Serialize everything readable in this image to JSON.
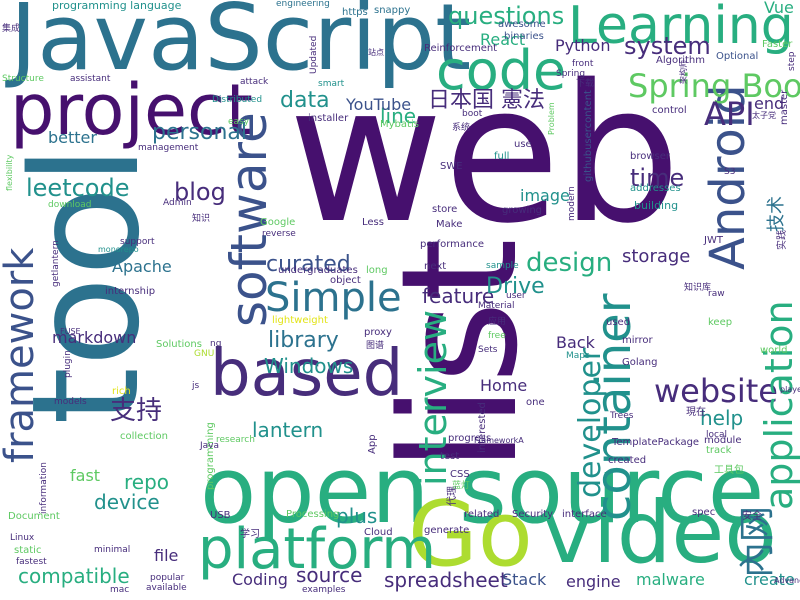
{
  "palette": {
    "dark_purple": "#46106e",
    "purple": "#472d7b",
    "indigo": "#3b528b",
    "blue": "#2c728e",
    "teal": "#21918c",
    "green_teal": "#28ae80",
    "green": "#5ec962",
    "lime": "#addc30",
    "yellow": "#e2e418"
  },
  "words": [
    {
      "text": "web",
      "color": "dark_purple",
      "rot": 0
    },
    {
      "text": "list",
      "color": "dark_purple",
      "rot": 90
    },
    {
      "text": "tool",
      "color": "blue",
      "rot": 90
    },
    {
      "text": "open source",
      "color": "green_teal",
      "rot": 0
    },
    {
      "text": "JavaScript",
      "color": "blue",
      "rot": 0
    },
    {
      "text": "Go",
      "color": "lime",
      "rot": 0
    },
    {
      "text": "video",
      "color": "green_teal",
      "rot": 0
    },
    {
      "text": "project",
      "color": "dark_purple",
      "rot": 0
    },
    {
      "text": "based",
      "color": "purple",
      "rot": 0
    },
    {
      "text": "platform",
      "color": "green_teal",
      "rot": 0
    },
    {
      "text": "code",
      "color": "green_teal",
      "rot": 0
    },
    {
      "text": "Learning",
      "color": "green_teal",
      "rot": 0
    },
    {
      "text": "software",
      "color": "indigo",
      "rot": 90
    },
    {
      "text": "framework",
      "color": "indigo",
      "rot": 90
    },
    {
      "text": "Android",
      "color": "indigo",
      "rot": 90
    },
    {
      "text": "Simple",
      "color": "blue",
      "rot": 0
    },
    {
      "text": "Spring Boot",
      "color": "green",
      "rot": 0
    },
    {
      "text": "website",
      "color": "purple",
      "rot": 0
    },
    {
      "text": "questions",
      "color": "green_teal",
      "rot": 0
    },
    {
      "text": "system",
      "color": "purple",
      "rot": 0
    },
    {
      "text": "API",
      "color": "purple",
      "rot": 0
    },
    {
      "text": "data",
      "color": "teal",
      "rot": 0
    },
    {
      "text": "line",
      "color": "green_teal",
      "rot": 0
    },
    {
      "text": "日本国 憲法",
      "color": "purple",
      "rot": 0
    },
    {
      "text": "YouTube",
      "color": "indigo",
      "rot": 0
    },
    {
      "text": "personal",
      "color": "blue",
      "rot": 0
    },
    {
      "text": "better",
      "color": "blue",
      "rot": 0
    },
    {
      "text": "leetcode",
      "color": "teal",
      "rot": 0
    },
    {
      "text": "blog",
      "color": "purple",
      "rot": 0
    },
    {
      "text": "time",
      "color": "purple",
      "rot": 0
    },
    {
      "text": "image",
      "color": "teal",
      "rot": 0
    },
    {
      "text": "design",
      "color": "green_teal",
      "rot": 0
    },
    {
      "text": "curated",
      "color": "indigo",
      "rot": 0
    },
    {
      "text": "storage",
      "color": "purple",
      "rot": 0
    },
    {
      "text": "Apache",
      "color": "blue",
      "rot": 0
    },
    {
      "text": "feature",
      "color": "purple",
      "rot": 0
    },
    {
      "text": "Drive",
      "color": "teal",
      "rot": 0
    },
    {
      "text": "library",
      "color": "blue",
      "rot": 0
    },
    {
      "text": "Windows",
      "color": "teal",
      "rot": 0
    },
    {
      "text": "markdown",
      "color": "purple",
      "rot": 0
    },
    {
      "text": "container",
      "color": "teal",
      "rot": 90
    },
    {
      "text": "application",
      "color": "green_teal",
      "rot": 90
    },
    {
      "text": "interview",
      "color": "green_teal",
      "rot": 90
    },
    {
      "text": "developer",
      "color": "teal",
      "rot": 90
    },
    {
      "text": "支持",
      "color": "purple",
      "rot": 0
    },
    {
      "text": "lantern",
      "color": "teal",
      "rot": 0
    },
    {
      "text": "help",
      "color": "teal",
      "rot": 0
    },
    {
      "text": "repo",
      "color": "green_teal",
      "rot": 0
    },
    {
      "text": "device",
      "color": "teal",
      "rot": 0
    },
    {
      "text": "fast",
      "color": "green",
      "rot": 0
    },
    {
      "text": "plus",
      "color": "teal",
      "rot": 0
    },
    {
      "text": "compatible",
      "color": "green_teal",
      "rot": 0
    },
    {
      "text": "file",
      "color": "purple",
      "rot": 0
    },
    {
      "text": "source",
      "color": "purple",
      "rot": 0
    },
    {
      "text": "spreadsheet",
      "color": "purple",
      "rot": 0
    },
    {
      "text": "Stack",
      "color": "indigo",
      "rot": 0
    },
    {
      "text": "engine",
      "color": "purple",
      "rot": 0
    },
    {
      "text": "malware",
      "color": "green_teal",
      "rot": 0
    },
    {
      "text": "create",
      "color": "teal",
      "rot": 0
    },
    {
      "text": "Coding",
      "color": "purple",
      "rot": 0
    },
    {
      "text": "Home",
      "color": "purple",
      "rot": 0
    },
    {
      "text": "Back",
      "color": "purple",
      "rot": 0
    },
    {
      "text": "end",
      "color": "purple",
      "rot": 0
    },
    {
      "text": "內网",
      "color": "blue",
      "rot": 90
    },
    {
      "text": "技术",
      "color": "blue",
      "rot": 90
    },
    {
      "text": "Python",
      "color": "purple",
      "rot": 0
    },
    {
      "text": "React",
      "color": "green_teal",
      "rot": 0
    },
    {
      "text": "Vue",
      "color": "green_teal",
      "rot": 0
    },
    {
      "text": "programming language",
      "color": "teal",
      "rot": 0
    },
    {
      "text": "engineering",
      "color": "blue",
      "rot": 0
    },
    {
      "text": "https",
      "color": "blue",
      "rot": 0
    },
    {
      "text": "snappy",
      "color": "blue",
      "rot": 0
    },
    {
      "text": "awesome",
      "color": "indigo",
      "rot": 0
    },
    {
      "text": "binaries",
      "color": "indigo",
      "rot": 0
    },
    {
      "text": "Reinforcement",
      "color": "purple",
      "rot": 0
    },
    {
      "text": "Algorithm",
      "color": "purple",
      "rot": 0
    },
    {
      "text": "Optional",
      "color": "indigo",
      "rot": 0
    },
    {
      "text": "Faster",
      "color": "green",
      "rot": 0
    },
    {
      "text": "front",
      "color": "purple",
      "rot": 0
    },
    {
      "text": "下载",
      "color": "purple",
      "rot": 0
    },
    {
      "text": "control",
      "color": "purple",
      "rot": 0
    },
    {
      "text": "boot",
      "color": "purple",
      "rot": 0
    },
    {
      "text": "installer",
      "color": "purple",
      "rot": 0
    },
    {
      "text": "smart",
      "color": "teal",
      "rot": 0
    },
    {
      "text": "Mybatis",
      "color": "green",
      "rot": 0
    },
    {
      "text": "系统",
      "color": "purple",
      "rot": 0
    },
    {
      "text": "githubusercontent",
      "color": "indigo",
      "rot": 90
    },
    {
      "text": "use",
      "color": "purple",
      "rot": 0
    },
    {
      "text": "full",
      "color": "teal",
      "rot": 0
    },
    {
      "text": "SWE",
      "color": "purple",
      "rot": 0
    },
    {
      "text": "browser",
      "color": "purple",
      "rot": 0
    },
    {
      "text": "addresses",
      "color": "teal",
      "rot": 0
    },
    {
      "text": "building",
      "color": "teal",
      "rot": 0
    },
    {
      "text": "store",
      "color": "purple",
      "rot": 0
    },
    {
      "text": "Make",
      "color": "purple",
      "rot": 0
    },
    {
      "text": "growing",
      "color": "purple",
      "rot": 0
    },
    {
      "text": "Less",
      "color": "purple",
      "rot": 0
    },
    {
      "text": "Google",
      "color": "green",
      "rot": 0
    },
    {
      "text": "reverse",
      "color": "purple",
      "rot": 0
    },
    {
      "text": "performance",
      "color": "purple",
      "rot": 0
    },
    {
      "text": "undergraduates",
      "color": "purple",
      "rot": 0
    },
    {
      "text": "object",
      "color": "purple",
      "rot": 0
    },
    {
      "text": "long",
      "color": "green",
      "rot": 0
    },
    {
      "text": "next",
      "color": "purple",
      "rot": 0
    },
    {
      "text": "sample",
      "color": "teal",
      "rot": 0
    },
    {
      "text": "JWT",
      "color": "purple",
      "rot": 0
    },
    {
      "text": "S3",
      "color": "purple",
      "rot": 0
    },
    {
      "text": "master",
      "color": "purple",
      "rot": 90
    },
    {
      "text": "实践",
      "color": "purple",
      "rot": 90
    },
    {
      "text": "raw",
      "color": "purple",
      "rot": 0
    },
    {
      "text": "知识库",
      "color": "purple",
      "rot": 0
    },
    {
      "text": "keep",
      "color": "green",
      "rot": 0
    },
    {
      "text": "world",
      "color": "green",
      "rot": 0
    },
    {
      "text": "Material",
      "color": "purple",
      "rot": 0
    },
    {
      "text": "user",
      "color": "purple",
      "rot": 0
    },
    {
      "text": "used",
      "color": "purple",
      "rot": 0
    },
    {
      "text": "应用",
      "color": "purple",
      "rot": 0
    },
    {
      "text": "free",
      "color": "green",
      "rot": 0
    },
    {
      "text": "proxy",
      "color": "purple",
      "rot": 0
    },
    {
      "text": "图谱",
      "color": "purple",
      "rot": 0
    },
    {
      "text": "Sets",
      "color": "purple",
      "rot": 0
    },
    {
      "text": "Maps",
      "color": "teal",
      "rot": 0
    },
    {
      "text": "mirror",
      "color": "purple",
      "rot": 0
    },
    {
      "text": "Golang",
      "color": "purple",
      "rot": 0
    },
    {
      "text": "lightweight",
      "color": "yellow",
      "rot": 0
    },
    {
      "text": "Solutions",
      "color": "green",
      "rot": 0
    },
    {
      "text": "GNU",
      "color": "lime",
      "rot": 0
    },
    {
      "text": "ng",
      "color": "purple",
      "rot": 0
    },
    {
      "text": "plugin",
      "color": "purple",
      "rot": 90
    },
    {
      "text": "internship",
      "color": "purple",
      "rot": 0
    },
    {
      "text": "monorepo",
      "color": "teal",
      "rot": 0
    },
    {
      "text": "support",
      "color": "purple",
      "rot": 0
    },
    {
      "text": "getlantern",
      "color": "purple",
      "rot": 90
    },
    {
      "text": "FUSE",
      "color": "purple",
      "rot": 0
    },
    {
      "text": "知识",
      "color": "purple",
      "rot": 0
    },
    {
      "text": "Admin",
      "color": "purple",
      "rot": 0
    },
    {
      "text": "download",
      "color": "green",
      "rot": 0
    },
    {
      "text": "flexibility",
      "color": "green",
      "rot": 90
    },
    {
      "text": "management",
      "color": "purple",
      "rot": 0
    },
    {
      "text": "easy",
      "color": "green",
      "rot": 0
    },
    {
      "text": "Distributed",
      "color": "teal",
      "rot": 0
    },
    {
      "text": "attack",
      "color": "purple",
      "rot": 0
    },
    {
      "text": "Updated",
      "color": "purple",
      "rot": 90
    },
    {
      "text": "Structure",
      "color": "green",
      "rot": 0
    },
    {
      "text": "assistant",
      "color": "purple",
      "rot": 0
    },
    {
      "text": "集成",
      "color": "purple",
      "rot": 0
    },
    {
      "text": "站点",
      "color": "purple",
      "rot": 0
    },
    {
      "text": "modern",
      "color": "purple",
      "rot": 90
    },
    {
      "text": "架构师",
      "color": "purple",
      "rot": 90
    },
    {
      "text": "太子党",
      "color": "purple",
      "rot": 0
    },
    {
      "text": "step",
      "color": "purple",
      "rot": 90
    },
    {
      "text": "Spring",
      "color": "purple",
      "rot": 0
    },
    {
      "text": "Problem",
      "color": "green",
      "rot": 90
    },
    {
      "text": "rich",
      "color": "yellow",
      "rot": 0
    },
    {
      "text": "collection",
      "color": "green",
      "rot": 0
    },
    {
      "text": "models",
      "color": "purple",
      "rot": 0
    },
    {
      "text": "information",
      "color": "purple",
      "rot": 90
    },
    {
      "text": "programming",
      "color": "green",
      "rot": 90
    },
    {
      "text": "research",
      "color": "green",
      "rot": 0
    },
    {
      "text": "Java",
      "color": "purple",
      "rot": 0
    },
    {
      "text": "js",
      "color": "purple",
      "rot": 0
    },
    {
      "text": "App",
      "color": "purple",
      "rot": 90
    },
    {
      "text": "progress",
      "color": "purple",
      "rot": 0
    },
    {
      "text": "FrameworkA",
      "color": "purple",
      "rot": 0
    },
    {
      "text": "TemplatePackage",
      "color": "purple",
      "rot": 0
    },
    {
      "text": "module",
      "color": "purple",
      "rot": 0
    },
    {
      "text": "local",
      "color": "purple",
      "rot": 0
    },
    {
      "text": "現在",
      "color": "purple",
      "rot": 0
    },
    {
      "text": "track",
      "color": "green",
      "rot": 0
    },
    {
      "text": "test",
      "color": "purple",
      "rot": 0
    },
    {
      "text": "created",
      "color": "purple",
      "rot": 0
    },
    {
      "text": "CSS",
      "color": "purple",
      "rot": 0
    },
    {
      "text": "蓝灯",
      "color": "green",
      "rot": 0
    },
    {
      "text": "工具包",
      "color": "green",
      "rot": 0
    },
    {
      "text": "代理",
      "color": "purple",
      "rot": 90
    },
    {
      "text": "Trees",
      "color": "purple",
      "rot": 0
    },
    {
      "text": "interested",
      "color": "purple",
      "rot": 90
    },
    {
      "text": "one",
      "color": "purple",
      "rot": 0
    },
    {
      "text": "USB",
      "color": "purple",
      "rot": 0
    },
    {
      "text": "Processing",
      "color": "green",
      "rot": 0
    },
    {
      "text": "generate",
      "color": "purple",
      "rot": 0
    },
    {
      "text": "related",
      "color": "purple",
      "rot": 0
    },
    {
      "text": "Security",
      "color": "purple",
      "rot": 0
    },
    {
      "text": "interface",
      "color": "purple",
      "rot": 0
    },
    {
      "text": "spec",
      "color": "purple",
      "rot": 0
    },
    {
      "text": "安全",
      "color": "purple",
      "rot": 0
    },
    {
      "text": "Document",
      "color": "green",
      "rot": 0
    },
    {
      "text": "Linux",
      "color": "purple",
      "rot": 0
    },
    {
      "text": "static",
      "color": "green",
      "rot": 0
    },
    {
      "text": "fastest",
      "color": "purple",
      "rot": 0
    },
    {
      "text": "minimal",
      "color": "purple",
      "rot": 0
    },
    {
      "text": "学习",
      "color": "purple",
      "rot": 0
    },
    {
      "text": "Cloud",
      "color": "purple",
      "rot": 0
    },
    {
      "text": "popular",
      "color": "purple",
      "rot": 0
    },
    {
      "text": "mac",
      "color": "purple",
      "rot": 0
    },
    {
      "text": "available",
      "color": "purple",
      "rot": 0
    },
    {
      "text": "examples",
      "color": "purple",
      "rot": 0
    },
    {
      "text": "Advanced",
      "color": "purple",
      "rot": 0
    },
    {
      "text": "player",
      "color": "purple",
      "rot": 0
    },
    {
      "text": "安装",
      "color": "green",
      "rot": 0
    }
  ]
}
